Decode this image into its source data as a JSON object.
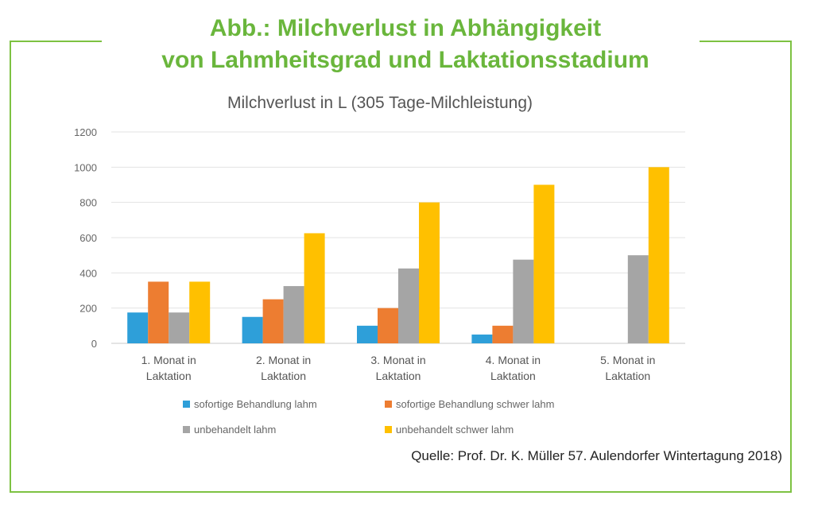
{
  "heading": {
    "line1": "Abb.: Milchverlust in Abhängigkeit",
    "line2": "von Lahmheitsgrad und Laktationsstadium"
  },
  "source": "Quelle: Prof. Dr. K. Müller 57. Aulendorfer Wintertagung 2018)",
  "colors": {
    "frame": "#7dc242",
    "heading": "#6ab63c"
  },
  "chart_data": {
    "type": "bar",
    "title": "Milchverlust in L (305 Tage-Milchleistung)",
    "xlabel": "",
    "ylabel": "",
    "ylim": [
      0,
      1200
    ],
    "yticks": [
      0,
      200,
      400,
      600,
      800,
      1000,
      1200
    ],
    "grid": true,
    "legend_position": "bottom",
    "categories": [
      [
        "1. Monat in",
        "Laktation"
      ],
      [
        "2. Monat in",
        "Laktation"
      ],
      [
        "3. Monat in",
        "Laktation"
      ],
      [
        "4. Monat in",
        "Laktation"
      ],
      [
        "5. Monat in",
        "Laktation"
      ]
    ],
    "series": [
      {
        "name": "sofortige Behandlung lahm",
        "color": "#2e9fd9",
        "values": [
          175,
          150,
          100,
          50,
          0
        ]
      },
      {
        "name": "sofortige Behandlung schwer lahm",
        "color": "#ed7d31",
        "values": [
          350,
          250,
          200,
          100,
          0
        ]
      },
      {
        "name": "unbehandelt lahm",
        "color": "#a5a5a5",
        "values": [
          175,
          325,
          425,
          475,
          500
        ]
      },
      {
        "name": "unbehandelt schwer lahm",
        "color": "#ffc000",
        "values": [
          350,
          625,
          800,
          900,
          1000
        ]
      }
    ]
  }
}
